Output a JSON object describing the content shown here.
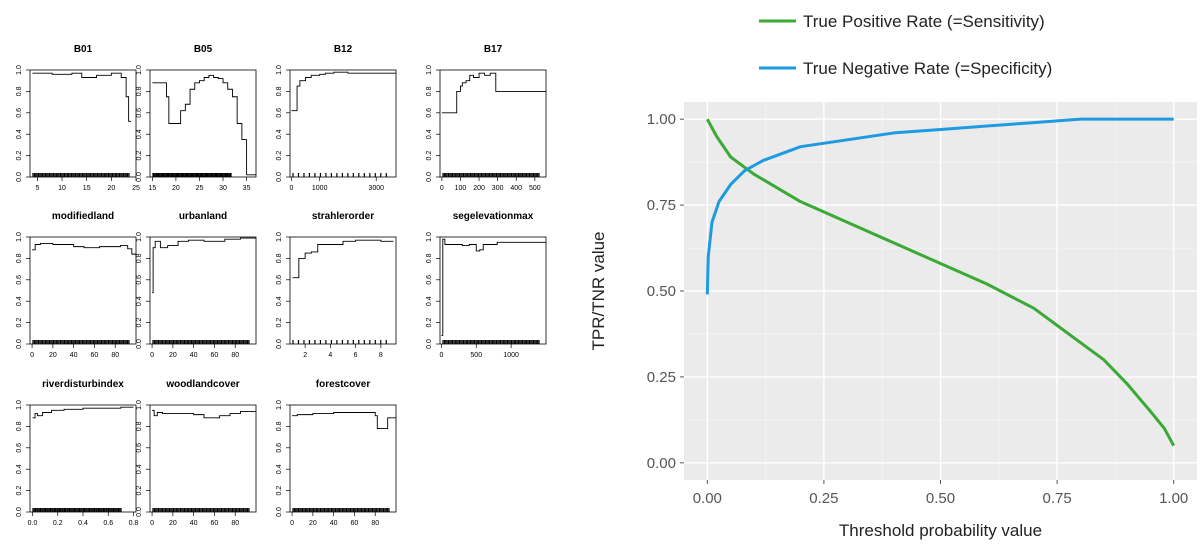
{
  "chart_data": [
    {
      "type": "line",
      "title": "B01",
      "xlim": [
        3.5,
        25
      ],
      "ylim": [
        0,
        1
      ],
      "x_ticks": [
        5,
        10,
        15,
        20,
        25
      ],
      "y_ticks": [
        0,
        0.2,
        0.4,
        0.6,
        0.8,
        1.0
      ],
      "x": [
        4,
        6,
        8,
        10,
        12,
        14,
        15,
        17,
        19,
        20,
        21,
        22,
        23,
        23.5,
        24
      ],
      "values": [
        0.97,
        0.97,
        0.96,
        0.96,
        0.97,
        0.93,
        0.93,
        0.95,
        0.95,
        0.97,
        0.97,
        0.93,
        0.75,
        0.52,
        0.52
      ]
    },
    {
      "type": "line",
      "title": "B05",
      "xlim": [
        14.5,
        37
      ],
      "ylim": [
        0,
        1
      ],
      "x_ticks": [
        15,
        20,
        25,
        30,
        35
      ],
      "y_ticks": [
        0,
        0.2,
        0.4,
        0.6,
        0.8,
        1.0
      ],
      "x": [
        15,
        17,
        18,
        18.5,
        20,
        21,
        22,
        23,
        24,
        25,
        26,
        27,
        28,
        29,
        30,
        31,
        32,
        33,
        34,
        35,
        37
      ],
      "values": [
        0.88,
        0.88,
        0.75,
        0.5,
        0.5,
        0.62,
        0.68,
        0.82,
        0.88,
        0.9,
        0.93,
        0.95,
        0.93,
        0.92,
        0.88,
        0.82,
        0.75,
        0.5,
        0.35,
        0.02,
        0.02
      ]
    },
    {
      "type": "line",
      "title": "B12",
      "xlim": [
        -50,
        3700
      ],
      "ylim": [
        0,
        1
      ],
      "x_ticks": [
        0,
        1000,
        3000
      ],
      "y_ticks": [
        0,
        0.2,
        0.4,
        0.6,
        0.8,
        1.0
      ],
      "x": [
        0,
        100,
        200,
        300,
        500,
        700,
        1000,
        1200,
        1500,
        2000,
        3000,
        3700
      ],
      "values": [
        0.62,
        0.62,
        0.85,
        0.9,
        0.93,
        0.95,
        0.96,
        0.97,
        0.98,
        0.97,
        0.97,
        0.97
      ]
    },
    {
      "type": "line",
      "title": "B17",
      "xlim": [
        -10,
        560
      ],
      "ylim": [
        0,
        1
      ],
      "x_ticks": [
        0,
        100,
        200,
        300,
        400,
        500
      ],
      "y_ticks": [
        0,
        0.2,
        0.4,
        0.6,
        0.8,
        1.0
      ],
      "x": [
        0,
        60,
        80,
        100,
        110,
        130,
        150,
        170,
        200,
        230,
        260,
        280,
        290,
        300,
        400,
        560
      ],
      "values": [
        0.6,
        0.6,
        0.8,
        0.85,
        0.88,
        0.9,
        0.95,
        0.93,
        0.97,
        0.95,
        0.97,
        0.97,
        0.8,
        0.8,
        0.8,
        0.8
      ]
    },
    {
      "type": "line",
      "title": "modifiedland",
      "xlim": [
        -2,
        100
      ],
      "ylim": [
        0,
        1
      ],
      "x_ticks": [
        0,
        20,
        40,
        60,
        80
      ],
      "y_ticks": [
        0,
        0.2,
        0.4,
        0.6,
        0.8,
        1.0
      ],
      "x": [
        0,
        3,
        8,
        20,
        30,
        40,
        50,
        55,
        65,
        75,
        85,
        92,
        96,
        100
      ],
      "values": [
        0.88,
        0.93,
        0.94,
        0.93,
        0.93,
        0.91,
        0.9,
        0.9,
        0.91,
        0.91,
        0.92,
        0.89,
        0.84,
        0.8
      ]
    },
    {
      "type": "line",
      "title": "urbanland",
      "xlim": [
        -2,
        100
      ],
      "ylim": [
        0,
        1
      ],
      "x_ticks": [
        0,
        20,
        40,
        60,
        80
      ],
      "y_ticks": [
        0,
        0.2,
        0.4,
        0.6,
        0.8,
        1.0
      ],
      "x": [
        0,
        1,
        3,
        8,
        15,
        25,
        35,
        50,
        70,
        85,
        100
      ],
      "values": [
        0.48,
        0.9,
        0.96,
        0.9,
        0.92,
        0.96,
        0.97,
        0.96,
        0.98,
        0.99,
        0.99
      ]
    },
    {
      "type": "line",
      "title": "strahlerorder",
      "xlim": [
        0.8,
        9.2
      ],
      "ylim": [
        0,
        1
      ],
      "x_ticks": [
        2,
        4,
        6,
        8
      ],
      "y_ticks": [
        0,
        0.2,
        0.4,
        0.6,
        0.8,
        1.0
      ],
      "x": [
        1,
        1.5,
        2,
        2.5,
        3,
        4,
        5,
        6,
        7,
        8,
        8.5,
        9
      ],
      "values": [
        0.62,
        0.8,
        0.85,
        0.86,
        0.93,
        0.93,
        0.96,
        0.97,
        0.97,
        0.96,
        0.96,
        0.96
      ]
    },
    {
      "type": "line",
      "title": "segelevationmax",
      "xlim": [
        -20,
        1500
      ],
      "ylim": [
        0,
        1
      ],
      "x_ticks": [
        0,
        500,
        1000
      ],
      "y_ticks": [
        0,
        0.2,
        0.4,
        0.6,
        0.8,
        1.0
      ],
      "x": [
        0,
        20,
        50,
        150,
        300,
        400,
        500,
        550,
        600,
        700,
        800,
        1000,
        1500
      ],
      "values": [
        0.08,
        0.98,
        0.93,
        0.93,
        0.92,
        0.93,
        0.87,
        0.88,
        0.93,
        0.93,
        0.95,
        0.95,
        0.95
      ]
    },
    {
      "type": "line",
      "title": "riverdisturbindex",
      "xlim": [
        -0.02,
        0.82
      ],
      "ylim": [
        0,
        1
      ],
      "x_ticks": [
        0,
        0.2,
        0.4,
        0.6,
        0.8
      ],
      "x_tick_labels": [
        "0.0",
        "0.2",
        "0.4",
        "0.6",
        "0.8"
      ],
      "y_ticks": [
        0,
        0.2,
        0.4,
        0.6,
        0.8,
        1.0
      ],
      "x": [
        0,
        0.02,
        0.04,
        0.08,
        0.15,
        0.25,
        0.4,
        0.55,
        0.65,
        0.7,
        0.8
      ],
      "values": [
        0.88,
        0.92,
        0.9,
        0.93,
        0.95,
        0.96,
        0.97,
        0.97,
        0.97,
        0.98,
        0.98
      ]
    },
    {
      "type": "line",
      "title": "woodlandcover",
      "xlim": [
        -2,
        100
      ],
      "ylim": [
        0,
        1
      ],
      "x_ticks": [
        0,
        20,
        40,
        60,
        80
      ],
      "y_ticks": [
        0,
        0.2,
        0.4,
        0.6,
        0.8,
        1.0
      ],
      "x": [
        0,
        2,
        5,
        10,
        20,
        40,
        50,
        60,
        65,
        75,
        85,
        100
      ],
      "values": [
        0.95,
        0.9,
        0.93,
        0.92,
        0.92,
        0.91,
        0.88,
        0.88,
        0.9,
        0.92,
        0.94,
        0.94
      ]
    },
    {
      "type": "line",
      "title": "forestcover",
      "xlim": [
        -2,
        100
      ],
      "ylim": [
        0,
        1
      ],
      "x_ticks": [
        0,
        20,
        40,
        60,
        80
      ],
      "y_ticks": [
        0,
        0.2,
        0.4,
        0.6,
        0.8,
        1.0
      ],
      "x": [
        0,
        5,
        20,
        40,
        60,
        75,
        80,
        82,
        90,
        92,
        100
      ],
      "values": [
        0.9,
        0.91,
        0.92,
        0.93,
        0.93,
        0.93,
        0.9,
        0.78,
        0.78,
        0.88,
        0.88
      ]
    },
    {
      "type": "line",
      "xlabel": "Threshold probability value",
      "ylabel": "TPR/TNR value",
      "xlim": [
        -0.05,
        1.05
      ],
      "ylim": [
        -0.05,
        1.05
      ],
      "x_ticks": [
        0,
        0.25,
        0.5,
        0.75,
        1.0
      ],
      "x_tick_labels": [
        "0.00",
        "0.25",
        "0.50",
        "0.75",
        "1.00"
      ],
      "y_ticks": [
        0,
        0.25,
        0.5,
        0.75,
        1.0
      ],
      "y_tick_labels": [
        "0.00",
        "0.25",
        "0.50",
        "0.75",
        "1.00"
      ],
      "grid": true,
      "legend": "top",
      "series": [
        {
          "name": "True Positive Rate (=Sensitivity)",
          "color": "#3ba935",
          "x": [
            0,
            0.02,
            0.05,
            0.08,
            0.1,
            0.15,
            0.2,
            0.3,
            0.4,
            0.5,
            0.6,
            0.7,
            0.75,
            0.8,
            0.85,
            0.9,
            0.95,
            0.98,
            1.0
          ],
          "values": [
            1.0,
            0.95,
            0.89,
            0.86,
            0.84,
            0.8,
            0.76,
            0.7,
            0.64,
            0.58,
            0.52,
            0.45,
            0.4,
            0.35,
            0.3,
            0.23,
            0.15,
            0.1,
            0.05
          ]
        },
        {
          "name": "True Negative Rate (=Specificity)",
          "color": "#1e9be0",
          "x": [
            0,
            0.002,
            0.01,
            0.025,
            0.05,
            0.08,
            0.12,
            0.2,
            0.3,
            0.4,
            0.5,
            0.6,
            0.7,
            0.8,
            0.9,
            1.0
          ],
          "values": [
            0.49,
            0.6,
            0.7,
            0.76,
            0.81,
            0.85,
            0.88,
            0.92,
            0.94,
            0.96,
            0.97,
            0.98,
            0.99,
            1.0,
            1.0,
            1.0
          ]
        }
      ]
    }
  ]
}
